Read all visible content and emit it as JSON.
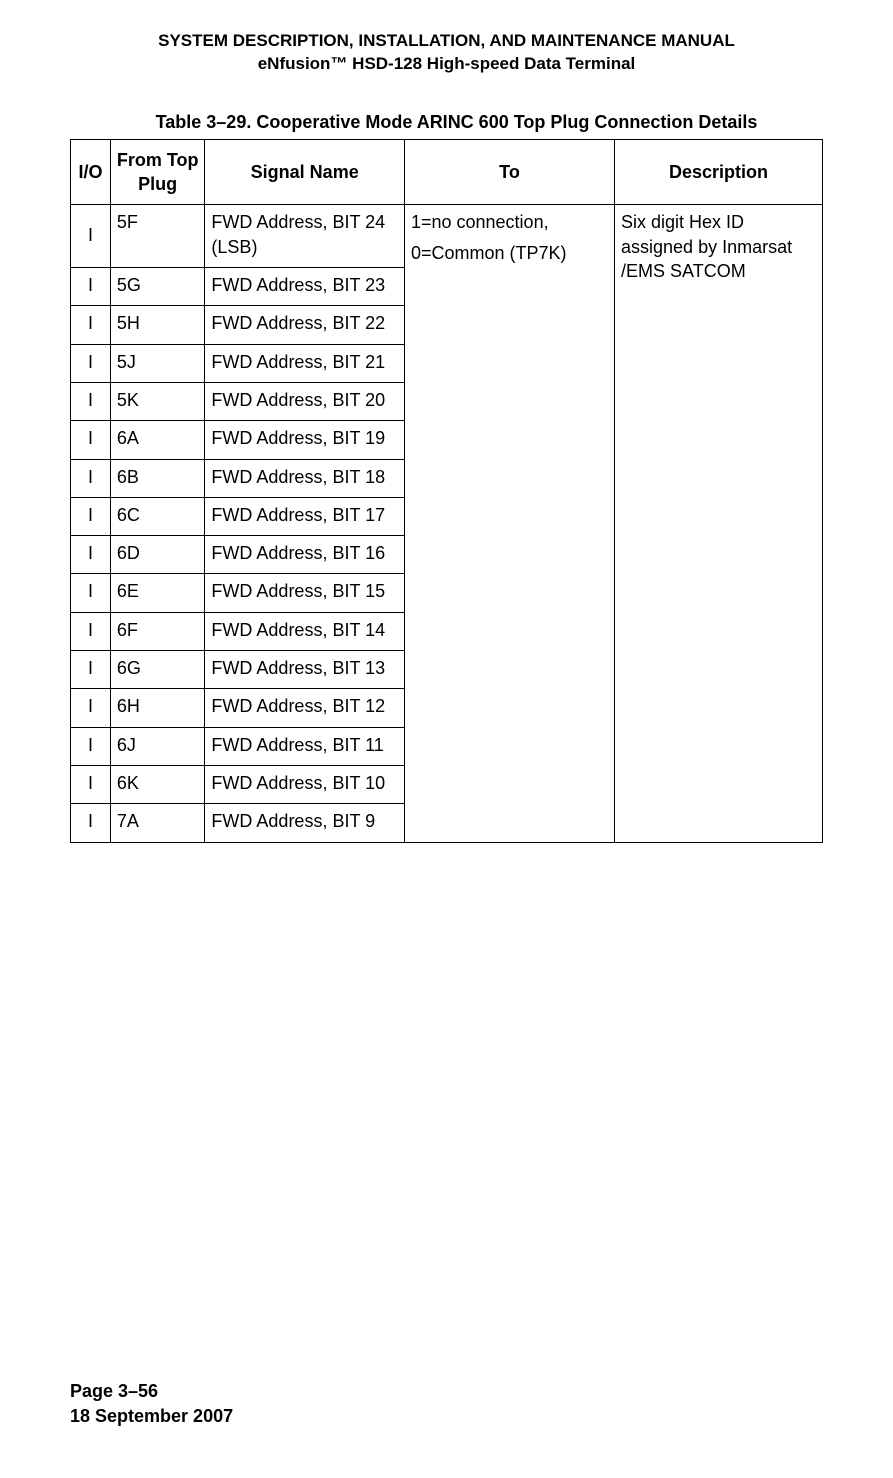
{
  "header": {
    "line1": "SYSTEM DESCRIPTION, INSTALLATION, AND MAINTENANCE MANUAL",
    "line2": "eNfusion™ HSD-128 High-speed Data Terminal"
  },
  "table": {
    "caption": "Table 3–29. Cooperative Mode ARINC 600 Top Plug Connection Details",
    "headers": {
      "io": "I/O",
      "from": "From Top Plug",
      "signal": "Signal Name",
      "to": "To",
      "desc": "Description"
    },
    "to_line1": "1=no connection,",
    "to_line2": "0=Common (TP7K)",
    "desc_text": "Six digit Hex ID assigned by Inmarsat /EMS SATCOM",
    "rows": [
      {
        "io": "I",
        "from": "5F",
        "signal": "FWD Address, BIT 24 (LSB)"
      },
      {
        "io": "I",
        "from": "5G",
        "signal": "FWD Address, BIT 23"
      },
      {
        "io": "I",
        "from": "5H",
        "signal": "FWD Address, BIT 22"
      },
      {
        "io": "I",
        "from": "5J",
        "signal": "FWD Address, BIT 21"
      },
      {
        "io": "I",
        "from": "5K",
        "signal": "FWD Address, BIT 20"
      },
      {
        "io": "I",
        "from": "6A",
        "signal": "FWD Address, BIT 19"
      },
      {
        "io": "I",
        "from": "6B",
        "signal": "FWD Address, BIT 18"
      },
      {
        "io": "I",
        "from": "6C",
        "signal": "FWD Address, BIT 17"
      },
      {
        "io": "I",
        "from": "6D",
        "signal": "FWD Address, BIT 16"
      },
      {
        "io": "I",
        "from": "6E",
        "signal": "FWD Address, BIT 15"
      },
      {
        "io": "I",
        "from": "6F",
        "signal": "FWD Address, BIT 14"
      },
      {
        "io": "I",
        "from": "6G",
        "signal": "FWD Address, BIT 13"
      },
      {
        "io": "I",
        "from": "6H",
        "signal": "FWD Address, BIT 12"
      },
      {
        "io": "I",
        "from": "6J",
        "signal": "FWD Address, BIT 11"
      },
      {
        "io": "I",
        "from": "6K",
        "signal": "FWD Address, BIT 10"
      },
      {
        "io": "I",
        "from": "7A",
        "signal": "FWD Address, BIT 9"
      }
    ]
  },
  "footer": {
    "page": "Page 3–56",
    "date": "18 September 2007"
  }
}
